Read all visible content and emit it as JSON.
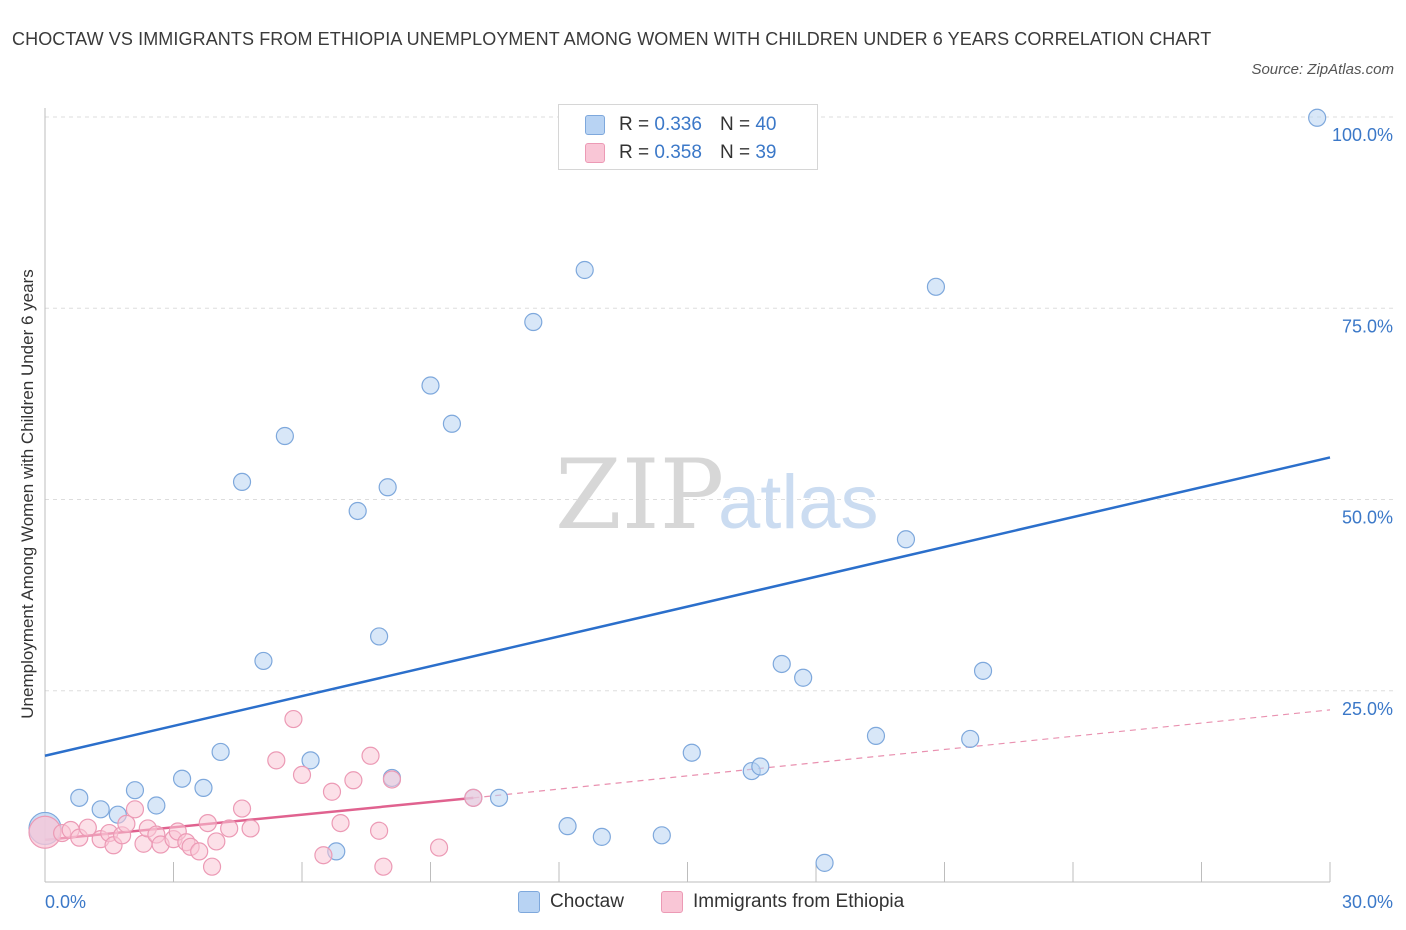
{
  "header": {
    "title": "CHOCTAW VS IMMIGRANTS FROM ETHIOPIA UNEMPLOYMENT AMONG WOMEN WITH CHILDREN UNDER 6 YEARS CORRELATION CHART",
    "source": "Source: ZipAtlas.com"
  },
  "watermark": {
    "zip": "ZIP",
    "atlas": "atlas"
  },
  "legend_top": [
    {
      "r_label": "R =",
      "r": "0.336",
      "n_label": "N =",
      "n": "40"
    },
    {
      "r_label": "R =",
      "r": "0.358",
      "n_label": "N =",
      "n": "39"
    }
  ],
  "colors": {
    "choctaw_fill": "#b8d3f3",
    "choctaw_stroke": "#7ea8dc",
    "choctaw_line": "#2b6fcb",
    "ethiopia_fill": "#f9c6d6",
    "ethiopia_stroke": "#ec9ab5",
    "ethiopia_line": "#e0628f",
    "grid": "#dddddd",
    "tick_text": "#3b78c8"
  },
  "chart_data": {
    "type": "scatter",
    "title": "CHOCTAW VS IMMIGRANTS FROM ETHIOPIA UNEMPLOYMENT AMONG WOMEN WITH CHILDREN UNDER 6 YEARS CORRELATION CHART",
    "xlabel": "",
    "ylabel": "Unemployment Among Women with Children Under 6 years",
    "xlim": [
      0,
      30
    ],
    "ylim": [
      0,
      100
    ],
    "x_tick_labels": [
      {
        "value": 0,
        "label": "0.0%"
      },
      {
        "value": 30,
        "label": "30.0%"
      }
    ],
    "y_tick_labels": [
      {
        "value": 100,
        "label": "100.0%"
      },
      {
        "value": 75,
        "label": "75.0%"
      },
      {
        "value": 50,
        "label": "50.0%"
      },
      {
        "value": 25,
        "label": "25.0%"
      }
    ],
    "y_gridlines": [
      25,
      50,
      75,
      100
    ],
    "x_minor_ticks": [
      3,
      6,
      9,
      12,
      15,
      18,
      21,
      24,
      27,
      30
    ],
    "legend_placement": "bottom",
    "series": [
      {
        "name": "Choctaw",
        "r": 0.336,
        "n": 40,
        "points": [
          [
            0.0,
            7.0,
            "big"
          ],
          [
            0.8,
            11.0
          ],
          [
            1.3,
            9.5
          ],
          [
            1.7,
            8.8
          ],
          [
            2.1,
            12.0
          ],
          [
            2.6,
            10.0
          ],
          [
            3.2,
            13.5
          ],
          [
            3.7,
            12.3
          ],
          [
            4.1,
            17.0
          ],
          [
            4.6,
            52.3
          ],
          [
            5.1,
            28.9
          ],
          [
            5.6,
            58.3
          ],
          [
            6.2,
            15.9
          ],
          [
            6.8,
            4.0
          ],
          [
            7.3,
            48.5
          ],
          [
            7.8,
            32.1
          ],
          [
            8.0,
            51.6
          ],
          [
            8.1,
            13.6
          ],
          [
            9.0,
            64.9
          ],
          [
            9.5,
            59.9
          ],
          [
            10.0,
            11.0
          ],
          [
            10.6,
            11.0
          ],
          [
            11.4,
            73.2
          ],
          [
            12.2,
            7.3
          ],
          [
            12.6,
            80.0
          ],
          [
            13.0,
            5.9
          ],
          [
            13.9,
            100.0
          ],
          [
            14.4,
            6.1
          ],
          [
            15.1,
            16.9
          ],
          [
            16.5,
            14.5
          ],
          [
            16.7,
            15.1
          ],
          [
            17.2,
            28.5
          ],
          [
            17.7,
            26.7
          ],
          [
            18.2,
            2.5
          ],
          [
            19.4,
            19.1
          ],
          [
            20.1,
            44.8
          ],
          [
            20.8,
            77.8
          ],
          [
            21.6,
            18.7
          ],
          [
            21.9,
            27.6
          ],
          [
            29.7,
            99.9
          ]
        ],
        "trend": {
          "x": [
            0,
            30
          ],
          "y": [
            16.5,
            55.5
          ]
        }
      },
      {
        "name": "Immigrants from Ethiopia",
        "r": 0.358,
        "n": 39,
        "points": [
          [
            0.0,
            6.5,
            "big"
          ],
          [
            0.4,
            6.4
          ],
          [
            0.6,
            6.8
          ],
          [
            0.8,
            5.8
          ],
          [
            1.0,
            7.1
          ],
          [
            1.3,
            5.6
          ],
          [
            1.5,
            6.4
          ],
          [
            1.6,
            4.8
          ],
          [
            1.8,
            6.1
          ],
          [
            1.9,
            7.6
          ],
          [
            2.1,
            9.5
          ],
          [
            2.3,
            5.0
          ],
          [
            2.4,
            7.0
          ],
          [
            2.6,
            6.2
          ],
          [
            2.7,
            4.9
          ],
          [
            3.0,
            5.6
          ],
          [
            3.1,
            6.6
          ],
          [
            3.3,
            5.2
          ],
          [
            3.4,
            4.6
          ],
          [
            3.6,
            4.0
          ],
          [
            3.8,
            7.7
          ],
          [
            3.9,
            2.0
          ],
          [
            4.0,
            5.3
          ],
          [
            4.3,
            7.0
          ],
          [
            4.6,
            9.6
          ],
          [
            4.8,
            7.0
          ],
          [
            5.4,
            15.9
          ],
          [
            5.8,
            21.3
          ],
          [
            6.0,
            14.0
          ],
          [
            6.5,
            3.5
          ],
          [
            6.7,
            11.8
          ],
          [
            6.9,
            7.7
          ],
          [
            7.2,
            13.3
          ],
          [
            7.6,
            16.5
          ],
          [
            7.8,
            6.7
          ],
          [
            7.9,
            2.0
          ],
          [
            8.1,
            13.4
          ],
          [
            9.2,
            4.5
          ],
          [
            10.0,
            11.0
          ]
        ],
        "trend": {
          "x": [
            0,
            10.0
          ],
          "y": [
            5.5,
            11.0
          ]
        },
        "trend_extension": {
          "x": [
            10.0,
            30
          ],
          "y": [
            11.0,
            22.5
          ]
        }
      }
    ]
  }
}
